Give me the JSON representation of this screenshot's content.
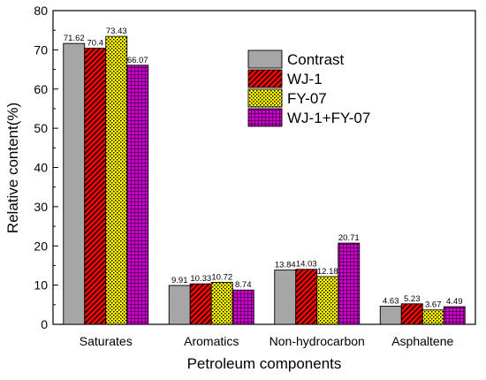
{
  "chart_data": {
    "type": "bar",
    "title": "",
    "xlabel": "Petroleum components",
    "ylabel": "Relative content(%)",
    "ylim": [
      0,
      80
    ],
    "yticks": [
      0,
      10,
      20,
      30,
      40,
      50,
      60,
      70,
      80
    ],
    "grid": false,
    "legend_position": "top-right",
    "categories": [
      "Saturates",
      "Aromatics",
      "Non-hydrocarbon",
      "Asphaltene"
    ],
    "series": [
      {
        "name": "Contrast",
        "values": [
          71.62,
          9.91,
          13.84,
          4.63
        ],
        "labels": [
          "71.62",
          "9.91",
          "13.84",
          "4.63"
        ],
        "color": "#a6a6a6",
        "pattern": "solid"
      },
      {
        "name": "WJ-1",
        "values": [
          70.4,
          10.33,
          14.03,
          5.23
        ],
        "labels": [
          "70.4",
          "10.33",
          "14.03",
          "5.23"
        ],
        "color": "#ff0000",
        "pattern": "diagonal"
      },
      {
        "name": "FY-07",
        "values": [
          73.43,
          10.72,
          12.18,
          3.67
        ],
        "labels": [
          "73.43",
          "10.72",
          "12.18",
          "3.67"
        ],
        "color": "#ffff00",
        "pattern": "checker"
      },
      {
        "name": "WJ-1+FY-07",
        "values": [
          66.07,
          8.74,
          20.71,
          4.49
        ],
        "labels": [
          "66.07",
          "8.74",
          "20.71",
          "4.49"
        ],
        "color": "#cc00cc",
        "pattern": "grid"
      }
    ]
  }
}
